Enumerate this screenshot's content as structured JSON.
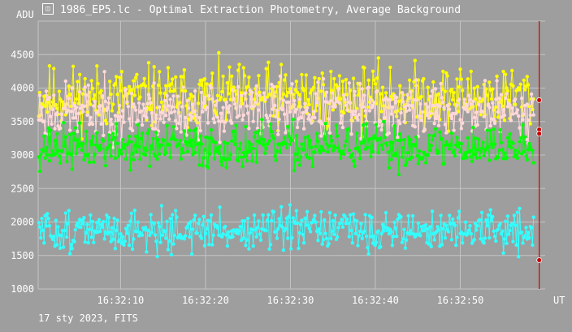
{
  "window": {
    "title": "1986_EP5.lc - Optimal Extraction Photometry, Average Background",
    "icon": "app-logo-icon"
  },
  "footer": {
    "text": "17 sty 2023, FITS"
  },
  "colors": {
    "background": "#9e9e9e",
    "grid": "#c4c4c4",
    "yellow": "#ffff00",
    "pink": "#ffd8d8",
    "green": "#00ff00",
    "cyan": "#33ffff",
    "marker": "#cc0000"
  },
  "chart_data": {
    "type": "scatter",
    "title": "1986_EP5.lc - Optimal Extraction Photometry, Average Background",
    "ylabel": "ADU",
    "xlabel": "UT",
    "ylim": [
      1000,
      5000
    ],
    "yticks": [
      "1000",
      "1500",
      "2000",
      "2500",
      "3000",
      "3500",
      "4000",
      "4500"
    ],
    "xticks": [
      "16:32:10",
      "16:32:20",
      "16:32:30",
      "16:32:40",
      "16:32:50"
    ],
    "x_start": "16:32:00.3",
    "x_end": "16:33:00.0",
    "cursor_time": "16:32:59.3",
    "cursor_values": [
      3820,
      3380,
      3320,
      1430
    ],
    "grid": true,
    "series": [
      {
        "name": "",
        "color": "#ffff00",
        "mean": 3870,
        "sd": 230,
        "samples": 460,
        "seed": 11
      },
      {
        "name": "",
        "color": "#ffd8d8",
        "mean": 3660,
        "sd": 210,
        "samples": 460,
        "seed": 23
      },
      {
        "name": "",
        "color": "#00ff00",
        "mean": 3120,
        "sd": 160,
        "samples": 460,
        "seed": 37
      },
      {
        "name": "",
        "color": "#33ffff",
        "mean": 1870,
        "sd": 150,
        "samples": 460,
        "seed": 51
      }
    ]
  }
}
